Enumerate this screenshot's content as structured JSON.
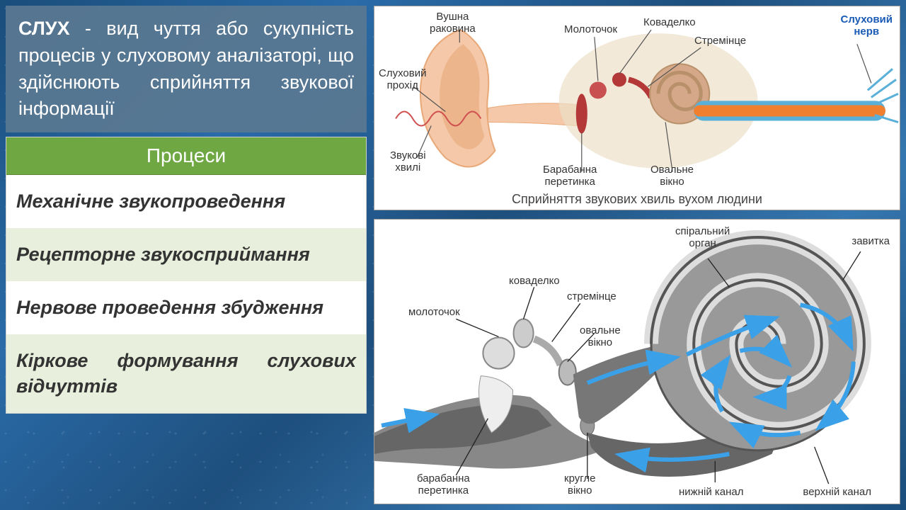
{
  "definition": {
    "term": "СЛУХ",
    "text": " - вид чуття або сукупність процесів у слуховому аналізаторі, що здійснюють сприйняття звукової інформації"
  },
  "process_table": {
    "header": "Процеси",
    "rows": [
      "Механічне звукопроведення",
      "Рецепторне звукосприймання",
      "Нервове проведення збудження",
      "Кіркове формування слухових відчуттів"
    ],
    "header_bg": "#6fa843",
    "row_alt_bg": "#e8efdc"
  },
  "diagram_top": {
    "caption": "Сприйняття звукових хвиль вухом людини",
    "labels": {
      "pinna": "Вушна\nраковина",
      "malleus": "Молоточок",
      "incus": "Коваделко",
      "stapes": "Стремінце",
      "nerve": "Слуховий\nнерв",
      "canal": "Слуховий\nпрохід",
      "waves": "Звукові\nхвилі",
      "tympanic": "Барабанна\nперетинка",
      "oval": "Овальне\nвікно"
    },
    "colors": {
      "ear_outer": "#f4c8a8",
      "ear_shadow": "#e8a878",
      "cochlea": "#d4a888",
      "membrane": "#b43838",
      "nerve_blue": "#5ab0d8",
      "nerve_orange": "#f08030",
      "wave": "#d05050",
      "line": "#555555"
    }
  },
  "diagram_bottom": {
    "labels": {
      "spiral_organ": "спіральний\nорган",
      "cochlea_coil": "завитка",
      "incus2": "коваделко",
      "malleus2": "молоточок",
      "stapes2": "стремінце",
      "oval2": "овальне\nвікно",
      "tympanic2": "барабанна\nперетинка",
      "round": "кругле\nвікно",
      "lower_canal": "нижній канал",
      "upper_canal": "верхній канал"
    },
    "colors": {
      "gray_dark": "#555555",
      "gray_mid": "#888888",
      "gray_light": "#bbbbbb",
      "arrow": "#3aa0e8",
      "line": "#222222"
    }
  }
}
